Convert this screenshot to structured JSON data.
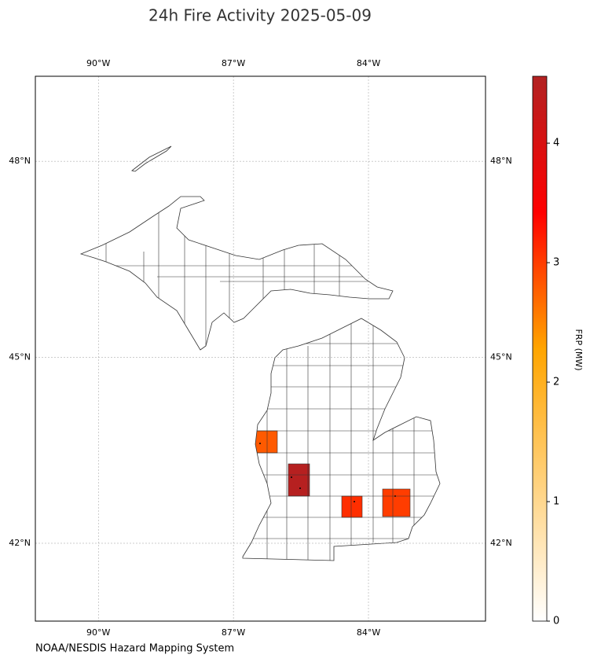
{
  "chart_data": {
    "type": "choropleth",
    "title": "24h Fire Activity 2025-05-09",
    "source": "NOAA/NESDIS Hazard Mapping System",
    "colorbar_label": "FRP (MW)",
    "values": [
      2.8,
      4.5,
      3.1,
      3.0
    ],
    "colormap": [
      "#ffffff",
      "#ffd27f",
      "#ffa500",
      "#ff0000",
      "#b22222"
    ],
    "clim": [
      0,
      4.56
    ],
    "cticks": [
      0,
      1,
      2,
      3,
      4
    ],
    "xlim": [
      -91.4,
      -81.4
    ],
    "ylim": [
      40.7,
      49.25
    ],
    "xticks": [
      {
        "value": -90,
        "label": "90°W"
      },
      {
        "value": -87,
        "label": "87°W"
      },
      {
        "value": -84,
        "label": "84°W"
      }
    ],
    "yticks": [
      {
        "value": 48,
        "label": "48°N"
      },
      {
        "value": 45,
        "label": "45°N"
      },
      {
        "value": 42,
        "label": "42°N"
      }
    ],
    "grid": true
  }
}
